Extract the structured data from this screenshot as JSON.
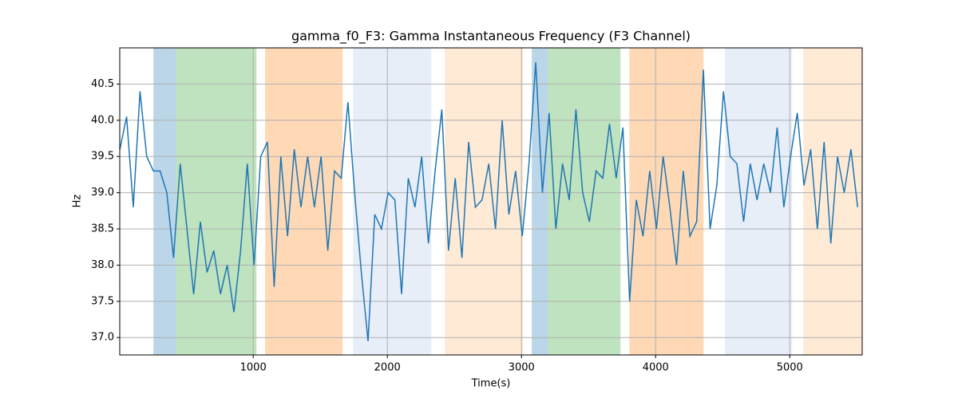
{
  "chart_data": {
    "type": "line",
    "title": "gamma_f0_F3: Gamma Instantaneous Frequency (F3 Channel)",
    "x_label": "Time(s)",
    "y_label": "Hz",
    "xlim": [
      5,
      5540
    ],
    "ylim": [
      36.76,
      41.0
    ],
    "xticks": [
      1000,
      2000,
      3000,
      4000,
      5000
    ],
    "yticks": [
      {
        "value": 37,
        "label": "37.0"
      },
      37.5,
      {
        "value": 38,
        "label": "38.0"
      },
      38.5,
      {
        "value": 39,
        "label": "39.0"
      },
      39.5,
      {
        "value": 40,
        "label": "40.0"
      },
      40.5
    ],
    "grid": true,
    "span_opacity": 0.3,
    "spans": [
      {
        "x0": 256,
        "x1": 423,
        "color": "#1f77b4"
      },
      {
        "x0": 423,
        "x1": 1024,
        "color": "#2ca02c"
      },
      {
        "x0": 1089,
        "x1": 1666,
        "color": "#ff7f0e"
      },
      {
        "x0": 1744,
        "x1": 2327,
        "color": "#aec7e8"
      },
      {
        "x0": 2429,
        "x1": 3012,
        "color": "#ffbb78"
      },
      {
        "x0": 3077,
        "x1": 3196,
        "color": "#1f77b4"
      },
      {
        "x0": 3196,
        "x1": 3738,
        "color": "#2ca02c"
      },
      {
        "x0": 3804,
        "x1": 4357,
        "color": "#ff7f0e"
      },
      {
        "x0": 4518,
        "x1": 5018,
        "color": "#aec7e8"
      },
      {
        "x0": 5101,
        "x1": 5540,
        "color": "#ffbb78"
      }
    ],
    "x": [
      6,
      56,
      106,
      156,
      206,
      256,
      306,
      356,
      406,
      456,
      506,
      556,
      606,
      656,
      706,
      756,
      806,
      856,
      906,
      956,
      1006,
      1056,
      1106,
      1156,
      1206,
      1256,
      1306,
      1356,
      1406,
      1456,
      1506,
      1556,
      1606,
      1656,
      1706,
      1756,
      1806,
      1856,
      1906,
      1956,
      2006,
      2056,
      2106,
      2156,
      2206,
      2256,
      2306,
      2356,
      2406,
      2456,
      2506,
      2556,
      2606,
      2656,
      2706,
      2756,
      2806,
      2856,
      2906,
      2956,
      3006,
      3056,
      3106,
      3156,
      3206,
      3256,
      3306,
      3356,
      3406,
      3456,
      3506,
      3556,
      3606,
      3656,
      3706,
      3756,
      3806,
      3856,
      3906,
      3956,
      4006,
      4056,
      4106,
      4156,
      4206,
      4256,
      4306,
      4356,
      4406,
      4456,
      4506,
      4556,
      4606,
      4656,
      4706,
      4756,
      4806,
      4856,
      4906,
      4956,
      5006,
      5056,
      5106,
      5156,
      5206,
      5256,
      5306,
      5356,
      5406,
      5456,
      5506
    ],
    "series": [
      {
        "name": "gamma_f0_F3",
        "color": "#1f77b4",
        "values": [
          39.6,
          40.05,
          38.8,
          40.4,
          39.5,
          39.3,
          39.3,
          39.0,
          38.1,
          39.4,
          38.5,
          37.6,
          38.6,
          37.9,
          38.2,
          37.6,
          38.0,
          37.35,
          38.2,
          39.4,
          38.0,
          39.5,
          39.7,
          37.7,
          39.5,
          38.4,
          39.6,
          38.8,
          39.5,
          38.8,
          39.5,
          38.2,
          39.3,
          39.2,
          40.25,
          39.0,
          37.9,
          36.95,
          38.7,
          38.5,
          39.0,
          38.9,
          37.6,
          39.2,
          38.8,
          39.5,
          38.3,
          39.3,
          40.15,
          38.2,
          39.2,
          38.1,
          39.7,
          38.8,
          38.9,
          39.4,
          38.5,
          40.0,
          38.7,
          39.3,
          38.4,
          39.4,
          40.8,
          39.0,
          40.1,
          38.5,
          39.4,
          38.9,
          40.15,
          39.0,
          38.6,
          39.3,
          39.2,
          39.95,
          39.2,
          39.9,
          37.5,
          38.9,
          38.4,
          39.3,
          38.5,
          39.5,
          38.8,
          38.0,
          39.3,
          38.4,
          38.6,
          40.7,
          38.5,
          39.1,
          40.4,
          39.5,
          39.4,
          38.6,
          39.4,
          38.9,
          39.4,
          39.0,
          39.9,
          38.8,
          39.5,
          40.1,
          39.1,
          39.6,
          38.5,
          39.7,
          38.3,
          39.5,
          39.0,
          39.6,
          38.8
        ]
      }
    ]
  }
}
